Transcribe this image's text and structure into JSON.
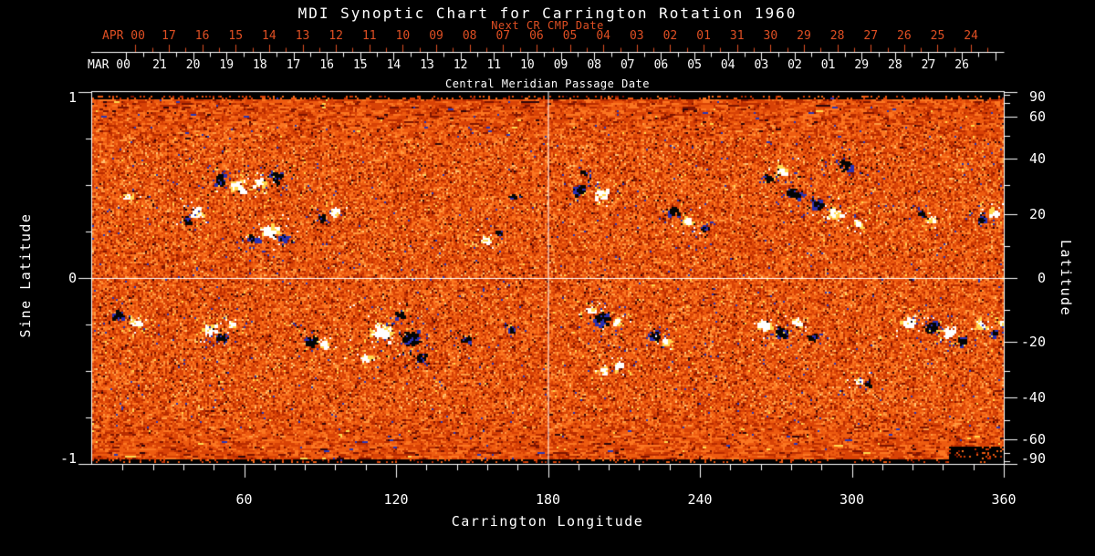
{
  "colors": {
    "background": "#000000",
    "text": "#ffffff",
    "accent_red": "#df4f23"
  },
  "chart_data": {
    "type": "heatmap",
    "title": "MDI Synoptic Chart for Carrington Rotation 1960",
    "xlabel": "Carrington Longitude",
    "xlim": [
      0,
      360
    ],
    "x_ticks": [
      60,
      120,
      180,
      240,
      300,
      360
    ],
    "x_minor_step_deg": 12,
    "ylabel_left": "Sine Latitude",
    "left_ticks": [
      "1",
      "0",
      "-1"
    ],
    "left_tick_values": [
      1,
      0,
      -1
    ],
    "left_minor_step": 0.25,
    "ylabel_right": "Latitude",
    "right_ticks": [
      90,
      60,
      40,
      20,
      0,
      -20,
      -40,
      -60,
      -90
    ],
    "right_minor_ticks_deg": [
      80,
      70,
      50,
      30,
      10,
      -10,
      -30,
      -50,
      -70,
      -80
    ],
    "ylim_sine": [
      -1,
      1
    ],
    "grid_crosshair": {
      "lon_deg": 180,
      "sine_lat": 0
    },
    "top_axis_next": {
      "title": "Next CR CMP Date",
      "month_label": "APR 00",
      "day_labels": [
        "17",
        "16",
        "15",
        "14",
        "13",
        "12",
        "11",
        "10",
        "09",
        "08",
        "07",
        "06",
        "05",
        "04",
        "03",
        "02",
        "01",
        "31",
        "30",
        "29",
        "28",
        "27",
        "26",
        "25",
        "24"
      ]
    },
    "top_axis_cmp": {
      "title": "Central Meridian Passage Date",
      "month_label": "MAR 00",
      "day_labels": [
        "21",
        "20",
        "19",
        "18",
        "17",
        "16",
        "15",
        "14",
        "13",
        "12",
        "11",
        "10",
        "09",
        "08",
        "07",
        "06",
        "05",
        "04",
        "03",
        "02",
        "01",
        "29",
        "28",
        "27",
        "26"
      ]
    },
    "colormap": {
      "background_palette": [
        [
          0.055,
          "#7f1400"
        ],
        [
          0.2,
          "#b92c00"
        ],
        [
          0.45,
          "#d84206"
        ],
        [
          0.7,
          "#ee5b10"
        ],
        [
          0.9,
          "#fc7621"
        ],
        [
          0.985,
          "#ff9a40"
        ],
        [
          1.1,
          "#ffc473"
        ]
      ],
      "speckle_yellow": "#ffd84e",
      "speckle_blue": "#2b36b4",
      "speckle_dark": "#300408",
      "positive_core": "#ffffff",
      "positive_fringe": "#ffd84e",
      "negative_core": "#050505",
      "negative_fringe": "#2a30b0",
      "no_data": "#000000"
    },
    "active_regions": [
      [
        50,
        0.53,
        7,
        -1
      ],
      [
        57,
        0.5,
        8,
        1
      ],
      [
        72,
        0.55,
        7,
        -1
      ],
      [
        66,
        0.52,
        6,
        1
      ],
      [
        41,
        0.36,
        7,
        1
      ],
      [
        37,
        0.32,
        5,
        -1
      ],
      [
        70,
        0.26,
        9,
        1
      ],
      [
        63,
        0.21,
        6,
        -1
      ],
      [
        75,
        0.22,
        4,
        -1
      ],
      [
        95,
        0.36,
        5,
        1
      ],
      [
        90,
        0.33,
        4,
        -1
      ],
      [
        14,
        0.44,
        4,
        1
      ],
      [
        155,
        0.21,
        5,
        1
      ],
      [
        160,
        0.25,
        3,
        -1
      ],
      [
        166,
        0.44,
        3,
        -1
      ],
      [
        192,
        0.48,
        7,
        -1
      ],
      [
        201,
        0.46,
        8,
        1
      ],
      [
        194,
        0.57,
        3,
        -1
      ],
      [
        229,
        0.36,
        7,
        -1
      ],
      [
        235,
        0.31,
        6,
        1
      ],
      [
        241,
        0.27,
        4,
        -1
      ],
      [
        272,
        0.58,
        6,
        1
      ],
      [
        267,
        0.54,
        4,
        -1
      ],
      [
        297,
        0.61,
        8,
        -1
      ],
      [
        277,
        0.46,
        8,
        -1
      ],
      [
        286,
        0.4,
        6,
        -1
      ],
      [
        293,
        0.35,
        8,
        1
      ],
      [
        302,
        0.3,
        5,
        1
      ],
      [
        331,
        0.32,
        5,
        1
      ],
      [
        327,
        0.35,
        4,
        -1
      ],
      [
        356,
        0.36,
        6,
        1
      ],
      [
        351,
        0.32,
        4,
        -1
      ],
      [
        10,
        -0.19,
        6,
        -1
      ],
      [
        17,
        -0.23,
        6,
        1
      ],
      [
        46,
        -0.27,
        7,
        1
      ],
      [
        51,
        -0.31,
        6,
        -1
      ],
      [
        55,
        -0.24,
        4,
        1
      ],
      [
        86,
        -0.33,
        6,
        -1
      ],
      [
        91,
        -0.35,
        5,
        1
      ],
      [
        114,
        -0.28,
        13,
        1
      ],
      [
        125,
        -0.31,
        10,
        -1
      ],
      [
        121,
        -0.19,
        5,
        -1
      ],
      [
        129,
        -0.42,
        6,
        -1
      ],
      [
        108,
        -0.42,
        5,
        1
      ],
      [
        147,
        -0.32,
        4,
        -1
      ],
      [
        165,
        -0.27,
        3,
        -1
      ],
      [
        197,
        -0.16,
        5,
        1
      ],
      [
        201,
        -0.21,
        9,
        -1
      ],
      [
        207,
        -0.23,
        5,
        1
      ],
      [
        222,
        -0.3,
        6,
        -1
      ],
      [
        226,
        -0.33,
        4,
        1
      ],
      [
        208,
        -0.46,
        5,
        1
      ],
      [
        202,
        -0.49,
        4,
        1
      ],
      [
        265,
        -0.24,
        7,
        1
      ],
      [
        272,
        -0.28,
        7,
        -1
      ],
      [
        278,
        -0.23,
        5,
        1
      ],
      [
        284,
        -0.31,
        4,
        -1
      ],
      [
        302,
        -0.54,
        4,
        1
      ],
      [
        306,
        -0.56,
        3,
        -1
      ],
      [
        322,
        -0.23,
        7,
        1
      ],
      [
        331,
        -0.26,
        8,
        -1
      ],
      [
        338,
        -0.28,
        7,
        1
      ],
      [
        343,
        -0.33,
        5,
        -1
      ],
      [
        351,
        -0.24,
        6,
        1
      ],
      [
        356,
        -0.29,
        4,
        -1
      ],
      [
        359,
        -0.23,
        4,
        1
      ]
    ]
  }
}
